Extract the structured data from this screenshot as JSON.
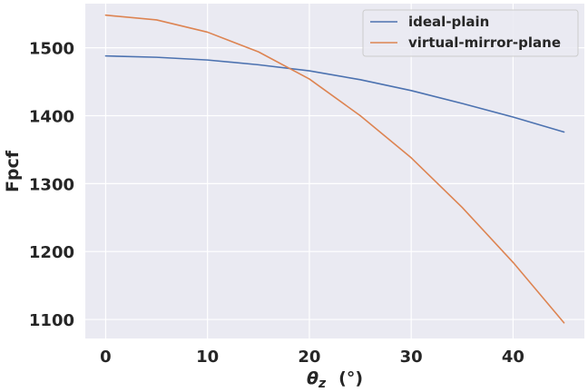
{
  "chart_data": {
    "type": "line",
    "xlabel_symbol": "θ",
    "xlabel_subscript": "z",
    "xlabel_unit": "(°)",
    "ylabel": "Fpcf",
    "xlim": [
      -2,
      47
    ],
    "ylim": [
      1072,
      1565
    ],
    "xticks": [
      0,
      10,
      20,
      30,
      40
    ],
    "yticks": [
      1100,
      1200,
      1300,
      1400,
      1500
    ],
    "grid": true,
    "legend_position": "top-right",
    "x": [
      0,
      5,
      10,
      15,
      20,
      25,
      30,
      35,
      40,
      45
    ],
    "series": [
      {
        "name": "ideal-plain",
        "color": "#4c72b0",
        "values": [
          1488,
          1486,
          1482,
          1475,
          1466,
          1453,
          1437,
          1418,
          1398,
          1376
        ]
      },
      {
        "name": "virtual-mirror-plane",
        "color": "#dd8452",
        "values": [
          1548,
          1541,
          1523,
          1494,
          1454,
          1400,
          1338,
          1265,
          1184,
          1095
        ]
      }
    ]
  }
}
